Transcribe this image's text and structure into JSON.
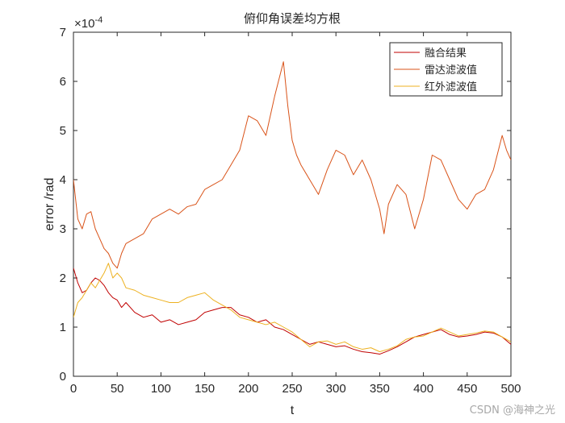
{
  "chart_data": {
    "type": "line",
    "title": "俯仰角误差均方根",
    "xlabel": "t",
    "ylabel": "error /rad",
    "xlim": [
      0,
      500
    ],
    "ylim": [
      0,
      7
    ],
    "y_exponent_label": "×10",
    "y_exponent_power": "-4",
    "xticks": [
      "0",
      "50",
      "100",
      "150",
      "200",
      "250",
      "300",
      "350",
      "400",
      "450",
      "500"
    ],
    "yticks": [
      "0",
      "1",
      "2",
      "3",
      "4",
      "5",
      "6",
      "7"
    ],
    "grid": false,
    "legend_position": "top-right",
    "series": [
      {
        "name": "融合结果",
        "color": "#c00000",
        "x": [
          0,
          5,
          10,
          15,
          20,
          25,
          30,
          35,
          40,
          45,
          50,
          55,
          60,
          70,
          80,
          90,
          100,
          110,
          120,
          130,
          140,
          150,
          160,
          170,
          180,
          190,
          200,
          210,
          220,
          230,
          240,
          250,
          260,
          270,
          280,
          290,
          300,
          310,
          320,
          330,
          340,
          350,
          360,
          370,
          380,
          390,
          400,
          410,
          420,
          430,
          440,
          450,
          460,
          470,
          480,
          490,
          500
        ],
        "values": [
          2.2,
          1.9,
          1.7,
          1.75,
          1.9,
          2.0,
          1.95,
          1.85,
          1.7,
          1.6,
          1.55,
          1.4,
          1.5,
          1.3,
          1.2,
          1.25,
          1.1,
          1.15,
          1.05,
          1.1,
          1.15,
          1.3,
          1.35,
          1.4,
          1.4,
          1.25,
          1.2,
          1.1,
          1.15,
          1.0,
          0.95,
          0.85,
          0.75,
          0.65,
          0.7,
          0.65,
          0.6,
          0.62,
          0.55,
          0.5,
          0.48,
          0.45,
          0.52,
          0.6,
          0.7,
          0.8,
          0.85,
          0.9,
          0.95,
          0.85,
          0.8,
          0.82,
          0.85,
          0.9,
          0.88,
          0.8,
          0.65
        ]
      },
      {
        "name": "雷达滤波值",
        "color": "#d95319",
        "x": [
          0,
          5,
          10,
          15,
          20,
          25,
          30,
          35,
          40,
          45,
          50,
          55,
          60,
          70,
          80,
          90,
          100,
          110,
          120,
          130,
          140,
          150,
          160,
          170,
          180,
          190,
          200,
          210,
          220,
          230,
          240,
          245,
          250,
          255,
          260,
          270,
          280,
          290,
          300,
          310,
          320,
          330,
          340,
          350,
          355,
          360,
          370,
          380,
          390,
          400,
          410,
          420,
          430,
          440,
          450,
          460,
          470,
          480,
          490,
          495,
          500
        ],
        "values": [
          4.0,
          3.2,
          3.0,
          3.3,
          3.35,
          3.0,
          2.8,
          2.6,
          2.5,
          2.3,
          2.2,
          2.5,
          2.7,
          2.8,
          2.9,
          3.2,
          3.3,
          3.4,
          3.3,
          3.45,
          3.5,
          3.8,
          3.9,
          4.0,
          4.3,
          4.6,
          5.3,
          5.2,
          4.9,
          5.7,
          6.4,
          5.5,
          4.8,
          4.5,
          4.3,
          4.0,
          3.7,
          4.2,
          4.6,
          4.5,
          4.1,
          4.4,
          4.0,
          3.4,
          2.9,
          3.5,
          3.9,
          3.7,
          3.0,
          3.6,
          4.5,
          4.4,
          4.0,
          3.6,
          3.4,
          3.7,
          3.8,
          4.2,
          4.9,
          4.6,
          4.4
        ]
      },
      {
        "name": "红外滤波值",
        "color": "#edb120",
        "x": [
          0,
          5,
          10,
          15,
          20,
          25,
          30,
          35,
          40,
          45,
          50,
          55,
          60,
          70,
          80,
          90,
          100,
          110,
          120,
          130,
          140,
          150,
          160,
          170,
          180,
          190,
          200,
          210,
          220,
          230,
          240,
          250,
          260,
          270,
          280,
          290,
          300,
          310,
          320,
          330,
          340,
          350,
          360,
          370,
          380,
          390,
          400,
          410,
          420,
          430,
          440,
          450,
          460,
          470,
          480,
          490,
          500
        ],
        "values": [
          1.2,
          1.5,
          1.6,
          1.75,
          1.9,
          1.8,
          1.95,
          2.1,
          2.3,
          2.0,
          2.1,
          2.0,
          1.8,
          1.75,
          1.65,
          1.6,
          1.55,
          1.5,
          1.5,
          1.6,
          1.65,
          1.7,
          1.55,
          1.45,
          1.35,
          1.2,
          1.15,
          1.1,
          1.05,
          1.1,
          1.0,
          0.9,
          0.75,
          0.6,
          0.7,
          0.72,
          0.65,
          0.7,
          0.6,
          0.55,
          0.58,
          0.5,
          0.55,
          0.62,
          0.75,
          0.8,
          0.82,
          0.9,
          0.98,
          0.9,
          0.82,
          0.85,
          0.88,
          0.92,
          0.9,
          0.8,
          0.7
        ]
      }
    ]
  },
  "watermark": "CSDN @海神之光"
}
